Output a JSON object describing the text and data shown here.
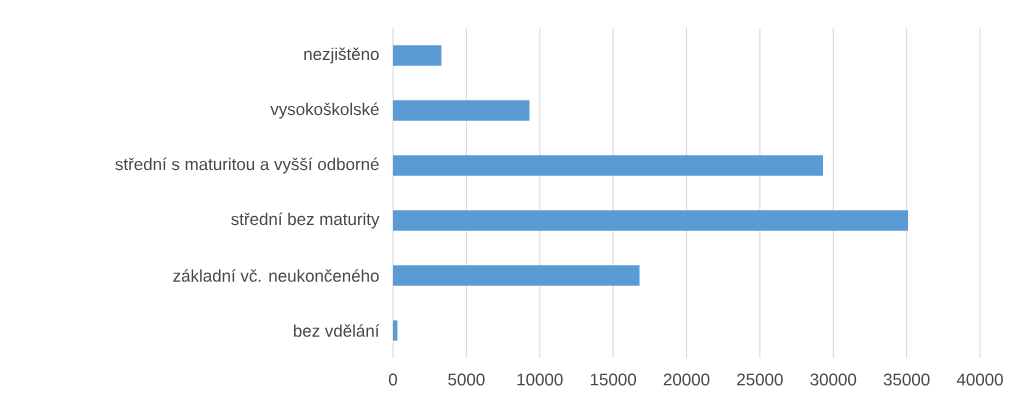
{
  "chart_data": {
    "type": "bar",
    "orientation": "horizontal",
    "categories": [
      "nezjištěno",
      "vysokoškolské",
      "střední s maturitou a vyšší odborné",
      "střední bez maturity",
      "základní vč. neukončeného",
      "bez vdělání"
    ],
    "values": [
      3300,
      9300,
      29300,
      35100,
      16800,
      300
    ],
    "color": "#5b9bd5",
    "xlim": [
      0,
      40000
    ],
    "xticks": [
      0,
      5000,
      10000,
      15000,
      20000,
      25000,
      30000,
      35000,
      40000
    ],
    "grid": "x"
  }
}
